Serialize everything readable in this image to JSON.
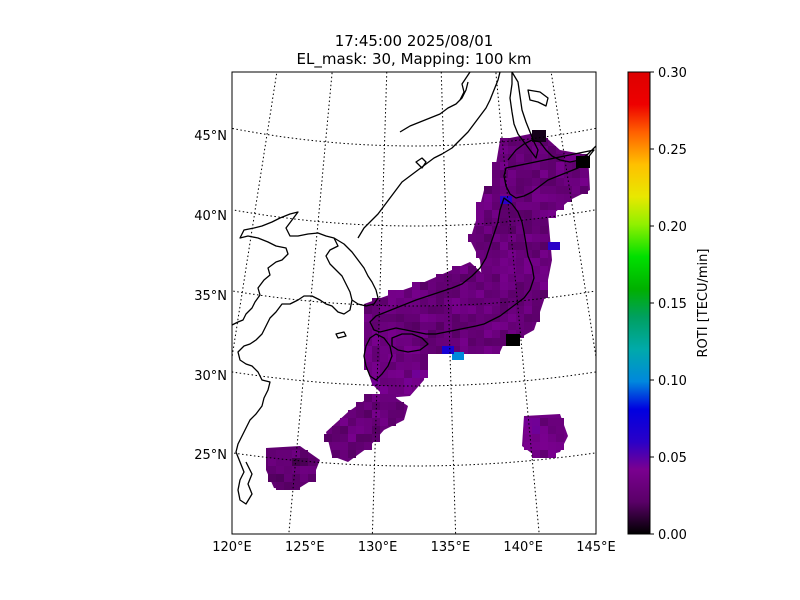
{
  "title": {
    "line1": "17:45:00 2025/08/01",
    "line2": "EL_mask: 30, Mapping: 100 km"
  },
  "map": {
    "projection": "lambert-conformal-conic",
    "lon_range": [
      120,
      145
    ],
    "lat_range": [
      20,
      49
    ],
    "meridians": [
      120,
      125,
      130,
      135,
      140,
      145
    ],
    "parallels": [
      25,
      30,
      35,
      40,
      45
    ],
    "lon_labels": [
      "120°E",
      "125°E",
      "130°E",
      "135°E",
      "140°E",
      "145°E"
    ],
    "lat_labels": [
      "25°N",
      "30°N",
      "35°N",
      "40°N",
      "45°N"
    ],
    "gridline_style": "dotted",
    "coastline_color": "#000000"
  },
  "colorbar": {
    "label": "ROTI [TECU/min]",
    "min": 0.0,
    "max": 0.3,
    "ticks": [
      "0.00",
      "0.05",
      "0.10",
      "0.15",
      "0.20",
      "0.25",
      "0.30"
    ],
    "colormap": "nipy_spectral-like (black-purple-blue-cyan-green-yellow-red)"
  },
  "roti_field": {
    "description_of_values": "ROTI over Japan region",
    "typical_value": 0.03,
    "dominant_color": "#3a0a5a",
    "regions": [
      {
        "name": "Hokkaido",
        "value": 0.03
      },
      {
        "name": "Honshu",
        "value": 0.03
      },
      {
        "name": "Shikoku",
        "value": 0.03
      },
      {
        "name": "Kyushu",
        "value": 0.035
      },
      {
        "name": "Ryukyu Islands",
        "value": 0.03
      },
      {
        "name": "Sakishima Islands",
        "value": 0.025
      },
      {
        "name": "Ogasawara Islands",
        "value": 0.035
      }
    ],
    "hotspots": [
      {
        "lon": 135.2,
        "lat": 32.5,
        "value": 0.1
      },
      {
        "lon": 134.5,
        "lat": 32.6,
        "value": 0.07
      },
      {
        "lon": 141.5,
        "lat": 39.5,
        "value": 0.06
      },
      {
        "lon": 138.7,
        "lat": 44.2,
        "value": 0.06
      }
    ],
    "lowspots": [
      {
        "lon": 139.5,
        "lat": 33.5,
        "value": 0.0
      },
      {
        "lon": 144.0,
        "lat": 44.0,
        "value": 0.0
      },
      {
        "lon": 140.5,
        "lat": 45.6,
        "value": 0.005
      }
    ]
  }
}
